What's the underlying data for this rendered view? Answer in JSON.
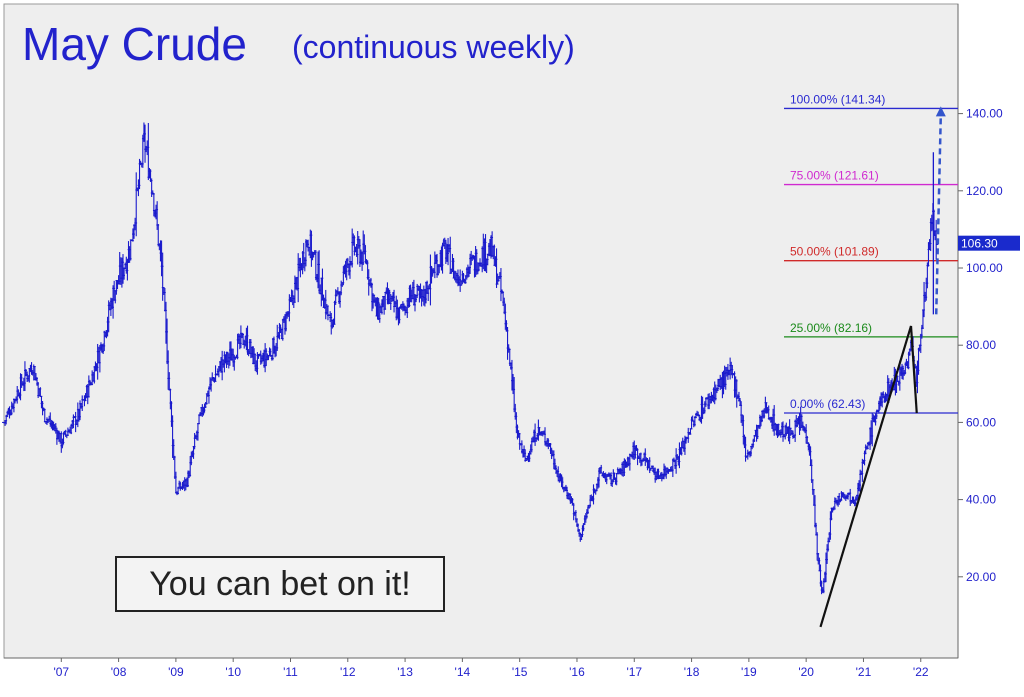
{
  "chart_data": {
    "type": "ohlc",
    "title": "May Crude",
    "subtitle": "(continuous weekly)",
    "callout": "You can bet on it!",
    "last_price": "106.30",
    "ylim": [
      0,
      160
    ],
    "y_ticks": [
      "20.00",
      "40.00",
      "60.00",
      "80.00",
      "100.00",
      "120.00",
      "140.00"
    ],
    "x_ticks": [
      "'07",
      "'08",
      "'09",
      "'10",
      "'11",
      "'12",
      "'13",
      "'14",
      "'15",
      "'16",
      "'17",
      "'18",
      "'19",
      "'20",
      "'21",
      "'22"
    ],
    "fib_levels": [
      {
        "label": "0.00% (62.43)",
        "value": 62.43,
        "color": "#2a2ad0"
      },
      {
        "label": "25.00% (82.16)",
        "value": 82.16,
        "color": "#1a8a1a"
      },
      {
        "label": "50.00% (101.89)",
        "value": 101.89,
        "color": "#d02a2a"
      },
      {
        "label": "75.00% (121.61)",
        "value": 121.61,
        "color": "#d02ad0"
      },
      {
        "label": "100.00% (141.34)",
        "value": 141.34,
        "color": "#2a2ad0"
      }
    ],
    "pattern_points": [
      [
        2020.25,
        7
      ],
      [
        2021.83,
        85
      ],
      [
        2021.93,
        62.43
      ]
    ],
    "projection": {
      "from": [
        2022.27,
        88
      ],
      "to": [
        2022.35,
        141.34
      ]
    },
    "price_path": [
      [
        2006.0,
        60
      ],
      [
        2006.3,
        70
      ],
      [
        2006.5,
        75
      ],
      [
        2006.7,
        62
      ],
      [
        2006.9,
        58
      ],
      [
        2007.0,
        55
      ],
      [
        2007.3,
        62
      ],
      [
        2007.5,
        70
      ],
      [
        2007.7,
        80
      ],
      [
        2007.9,
        93
      ],
      [
        2008.2,
        105
      ],
      [
        2008.45,
        133
      ],
      [
        2008.6,
        120
      ],
      [
        2008.75,
        100
      ],
      [
        2008.9,
        65
      ],
      [
        2009.0,
        42
      ],
      [
        2009.2,
        45
      ],
      [
        2009.4,
        60
      ],
      [
        2009.6,
        70
      ],
      [
        2009.8,
        75
      ],
      [
        2010.0,
        78
      ],
      [
        2010.2,
        82
      ],
      [
        2010.4,
        75
      ],
      [
        2010.6,
        77
      ],
      [
        2010.8,
        82
      ],
      [
        2011.0,
        90
      ],
      [
        2011.3,
        108
      ],
      [
        2011.5,
        97
      ],
      [
        2011.7,
        85
      ],
      [
        2011.9,
        97
      ],
      [
        2012.1,
        105
      ],
      [
        2012.3,
        103
      ],
      [
        2012.5,
        88
      ],
      [
        2012.7,
        92
      ],
      [
        2012.9,
        88
      ],
      [
        2013.1,
        93
      ],
      [
        2013.3,
        92
      ],
      [
        2013.5,
        100
      ],
      [
        2013.7,
        105
      ],
      [
        2013.9,
        97
      ],
      [
        2014.1,
        100
      ],
      [
        2014.3,
        103
      ],
      [
        2014.5,
        105
      ],
      [
        2014.7,
        92
      ],
      [
        2014.8,
        80
      ],
      [
        2014.95,
        57
      ],
      [
        2015.1,
        50
      ],
      [
        2015.3,
        58
      ],
      [
        2015.5,
        55
      ],
      [
        2015.7,
        45
      ],
      [
        2015.9,
        40
      ],
      [
        2016.05,
        30
      ],
      [
        2016.2,
        38
      ],
      [
        2016.4,
        47
      ],
      [
        2016.6,
        45
      ],
      [
        2016.8,
        48
      ],
      [
        2017.0,
        53
      ],
      [
        2017.2,
        50
      ],
      [
        2017.4,
        46
      ],
      [
        2017.6,
        48
      ],
      [
        2017.8,
        52
      ],
      [
        2017.95,
        58
      ],
      [
        2018.2,
        64
      ],
      [
        2018.5,
        70
      ],
      [
        2018.7,
        73
      ],
      [
        2018.85,
        65
      ],
      [
        2018.95,
        50
      ],
      [
        2019.1,
        56
      ],
      [
        2019.3,
        64
      ],
      [
        2019.5,
        58
      ],
      [
        2019.7,
        57
      ],
      [
        2019.9,
        60
      ],
      [
        2020.05,
        55
      ],
      [
        2020.2,
        25
      ],
      [
        2020.28,
        15
      ],
      [
        2020.45,
        38
      ],
      [
        2020.65,
        42
      ],
      [
        2020.85,
        40
      ],
      [
        2021.0,
        50
      ],
      [
        2021.2,
        62
      ],
      [
        2021.4,
        68
      ],
      [
        2021.6,
        72
      ],
      [
        2021.75,
        75
      ],
      [
        2021.85,
        80
      ],
      [
        2021.93,
        70
      ],
      [
        2022.0,
        85
      ],
      [
        2022.1,
        95
      ],
      [
        2022.2,
        115
      ],
      [
        2022.27,
        104
      ]
    ]
  }
}
